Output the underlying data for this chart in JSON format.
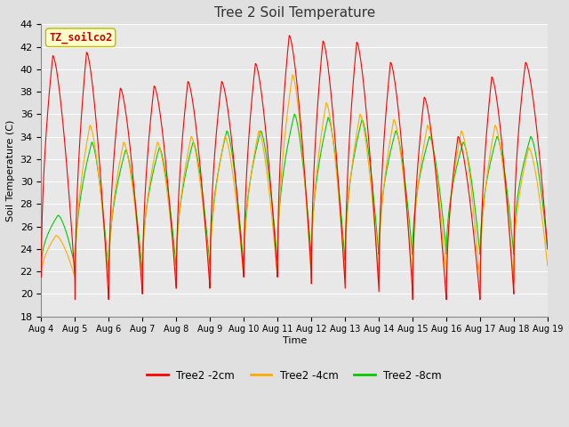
{
  "title": "Tree 2 Soil Temperature",
  "xlabel": "Time",
  "ylabel": "Soil Temperature (C)",
  "ylim": [
    18,
    44
  ],
  "background_color": "#e0e0e0",
  "plot_bg_color": "#e8e8e8",
  "grid_color": "#ffffff",
  "annotation_text": "TZ_soilco2",
  "annotation_bg": "#ffffcc",
  "annotation_border": "#bbbb00",
  "x_tick_labels": [
    "Aug 4",
    "Aug 5",
    "Aug 6",
    "Aug 7",
    "Aug 8",
    "Aug 9",
    "Aug 10",
    "Aug 11",
    "Aug 12",
    "Aug 13",
    "Aug 14",
    "Aug 15",
    "Aug 16",
    "Aug 17",
    "Aug 18",
    "Aug 19"
  ],
  "series": {
    "Tree2 -2cm": {
      "color": "#ff0000",
      "peaks": [
        41.2,
        41.5,
        38.3,
        38.5,
        38.9,
        38.9,
        40.5,
        43.0,
        42.5,
        42.4,
        40.6,
        37.5,
        34.0,
        39.3,
        40.6
      ],
      "troughs": [
        21.5,
        19.5,
        20.0,
        20.5,
        20.5,
        21.5,
        21.5,
        22.0,
        20.9,
        20.5,
        20.2,
        19.5,
        19.5,
        20.0,
        24.0
      ]
    },
    "Tree2 -4cm": {
      "color": "#ffaa00",
      "peaks": [
        25.2,
        35.0,
        33.5,
        33.5,
        34.0,
        34.0,
        34.5,
        39.5,
        37.0,
        36.0,
        35.5,
        35.0,
        34.5,
        35.0,
        33.0
      ],
      "troughs": [
        21.5,
        21.0,
        21.0,
        21.5,
        21.5,
        21.5,
        21.5,
        21.5,
        21.5,
        21.5,
        21.5,
        21.5,
        21.0,
        21.0,
        22.5
      ]
    },
    "Tree2 -8cm": {
      "color": "#00cc00",
      "peaks": [
        27.0,
        33.5,
        32.8,
        33.0,
        33.5,
        34.5,
        34.5,
        36.0,
        35.7,
        35.5,
        34.5,
        34.0,
        33.5,
        34.0,
        34.0
      ],
      "troughs": [
        22.5,
        22.0,
        22.0,
        22.5,
        22.5,
        22.5,
        23.0,
        23.5,
        23.0,
        23.5,
        23.5,
        23.8,
        23.5,
        23.5,
        24.0
      ]
    }
  },
  "legend_entries": [
    "Tree2 -2cm",
    "Tree2 -4cm",
    "Tree2 -8cm"
  ],
  "legend_colors": [
    "#ff0000",
    "#ffaa00",
    "#00cc00"
  ]
}
